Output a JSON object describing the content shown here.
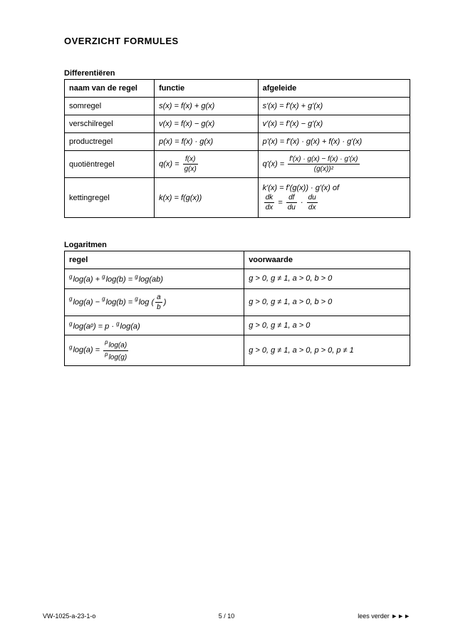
{
  "title": "OVERZICHT FORMULES",
  "diff": {
    "label": "Differentiëren",
    "headers": [
      "naam van de regel",
      "functie",
      "afgeleide"
    ],
    "rows": [
      {
        "name": "somregel",
        "func": "s(x) = f(x) + g(x)",
        "deriv": "s'(x) = f'(x) + g'(x)"
      },
      {
        "name": "verschilregel",
        "func": "v(x) = f(x) − g(x)",
        "deriv": "v'(x) = f'(x) − g'(x)"
      },
      {
        "name": "productregel",
        "func": "p(x) = f(x) · g(x)",
        "deriv": "p'(x) = f'(x) · g(x) + f(x) · g'(x)"
      },
      {
        "name": "quotiëntregel",
        "func_lhs": "q(x) =",
        "func_num": "f(x)",
        "func_den": "g(x)",
        "deriv_lhs": "q'(x) =",
        "deriv_num": "f'(x) · g(x) − f(x) · g'(x)",
        "deriv_den": "(g(x))²"
      },
      {
        "name": "kettingregel",
        "func": "k(x) = f(g(x))",
        "deriv_line1": "k'(x) = f'(g(x)) · g'(x) of",
        "deriv_eq_lhs": "dk",
        "deriv_eq_lhs_den": "dx",
        "deriv_eq_mid": "df",
        "deriv_eq_mid_den": "du",
        "deriv_eq_rhs": "du",
        "deriv_eq_rhs_den": "dx"
      }
    ]
  },
  "log": {
    "label": "Logaritmen",
    "headers": [
      "regel",
      "voorwaarde"
    ],
    "rows": [
      {
        "lhs_pre1": "g",
        "lhs_a": "log(a)",
        "lhs_op": "+",
        "lhs_pre2": "g",
        "lhs_b": "log(b)",
        "rhs_pre": "g",
        "rhs": "log(ab)",
        "cond": "g > 0, g ≠ 1, a > 0, b > 0"
      },
      {
        "lhs_pre1": "g",
        "lhs_a": "log(a)",
        "lhs_op": "−",
        "lhs_pre2": "g",
        "lhs_b": "log(b)",
        "rhs_pre": "g",
        "rhs_text": "log",
        "frac_num": "a",
        "frac_den": "b",
        "cond": "g > 0, g ≠ 1, a > 0, b > 0"
      },
      {
        "lhs_pre1": "g",
        "lhs_a": "log(aᵖ)",
        "rhs_text": "p ·",
        "rhs_pre": "g",
        "rhs": "log(a)",
        "cond": "g > 0, g ≠ 1, a > 0"
      },
      {
        "lhs_pre1": "g",
        "lhs_a": "log(a) =",
        "frac_num_pre": "p",
        "frac_num": "log(a)",
        "frac_den_pre": "p",
        "frac_den": "log(g)",
        "cond": "g > 0, g ≠ 1, a > 0, p > 0, p ≠ 1"
      }
    ]
  },
  "footer": {
    "left": "VW-1025-a-23-1-o",
    "center": "5 / 10",
    "right": "lees verder ►►►"
  },
  "colors": {
    "text": "#000000",
    "bg": "#ffffff",
    "border": "#000000"
  }
}
